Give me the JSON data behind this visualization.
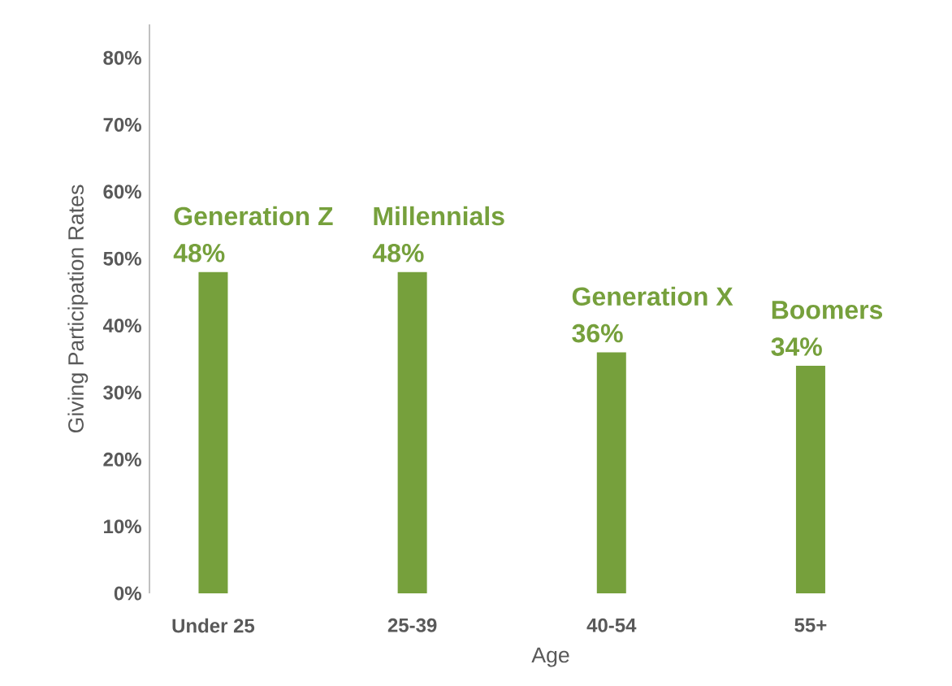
{
  "chart_data": {
    "type": "bar",
    "xlabel": "Age",
    "ylabel": "Giving Participation Rates",
    "categories": [
      "Under 25",
      "25-39",
      "40-54",
      "55+"
    ],
    "values": [
      48,
      48,
      36,
      34
    ],
    "color": "#76a03c",
    "value_labels": [
      "48%",
      "48%",
      "36%",
      "34%"
    ],
    "annotations": [
      {
        "text": "Generation Z",
        "x": "Under 25",
        "y": 48
      },
      {
        "text": "Millennials",
        "x": "25-39",
        "y": 48
      },
      {
        "text": "Generation X",
        "x": "40-54",
        "y": 36
      },
      {
        "text": "Boomers",
        "x": "55+",
        "y": 34
      }
    ],
    "ylim": [
      0,
      85
    ],
    "yticks": [
      {
        "value": 0,
        "label": "0%"
      },
      {
        "value": 10,
        "label": "10%"
      },
      {
        "value": 20,
        "label": "20%"
      },
      {
        "value": 30,
        "label": "30%"
      },
      {
        "value": 40,
        "label": "40%"
      },
      {
        "value": 50,
        "label": "50%"
      },
      {
        "value": 60,
        "label": "60%"
      },
      {
        "value": 70,
        "label": "70%"
      },
      {
        "value": 80,
        "label": "80%"
      }
    ],
    "grid": false
  }
}
